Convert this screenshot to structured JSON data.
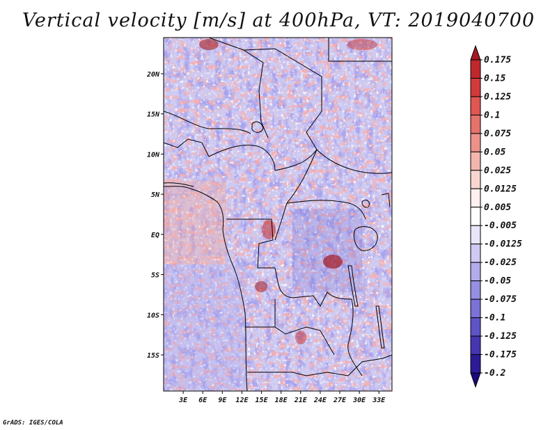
{
  "title": "Vertical velocity [m/s] at 400hPa, VT: 2019040700",
  "footer": "GrADS: IGES/COLA",
  "map": {
    "lat_labels": [
      "20N",
      "15N",
      "10N",
      "5N",
      "EQ",
      "5S",
      "10S",
      "15S"
    ],
    "lon_labels": [
      "3E",
      "6E",
      "9E",
      "12E",
      "15E",
      "18E",
      "21E",
      "24E",
      "27E",
      "30E",
      "33E"
    ],
    "lon_range": [
      0,
      35
    ],
    "lat_range": [
      -19.5,
      24.5
    ]
  },
  "colorbar": {
    "labels": [
      "0.175",
      "0.15",
      "0.125",
      "0.1",
      "0.075",
      "0.05",
      "0.025",
      "0.0125",
      "0.005",
      "-0.005",
      "-0.0125",
      "-0.025",
      "-0.05",
      "-0.075",
      "-0.1",
      "-0.125",
      "-0.175",
      "-0.2"
    ],
    "colors": [
      "#a31a22",
      "#c0282c",
      "#d23a3a",
      "#e05652",
      "#e6726c",
      "#ec928a",
      "#f3b6ae",
      "#f8d6d0",
      "#fdf0ee",
      "#ffffff",
      "#e8e6f8",
      "#cfcaf2",
      "#b2acec",
      "#9690e2",
      "#7a72d6",
      "#5e54c8",
      "#4636b2",
      "#2c1a96",
      "#1a0a7c"
    ]
  }
}
